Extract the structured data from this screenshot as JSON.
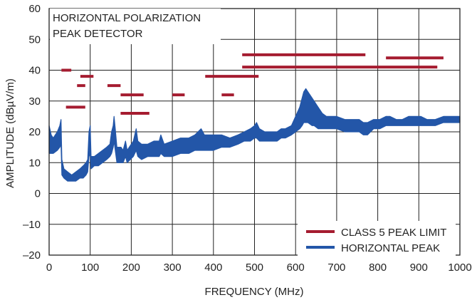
{
  "chart_data": {
    "type": "line",
    "annotation_lines": [
      "HORIZONTAL POLARIZATION",
      "PEAK DETECTOR"
    ],
    "xlabel": "FREQUENCY (MHz)",
    "ylabel": "AMPLITUDE (dBµV/m)",
    "xlim": [
      0,
      1000
    ],
    "ylim": [
      -20,
      60
    ],
    "x_ticks": [
      0,
      100,
      200,
      300,
      400,
      500,
      600,
      700,
      800,
      900,
      1000
    ],
    "y_ticks": [
      -20,
      -10,
      0,
      10,
      20,
      30,
      40,
      50,
      60
    ],
    "y_tick_labels": [
      "–20",
      "–10",
      "0",
      "10",
      "20",
      "30",
      "40",
      "50",
      "60"
    ],
    "grid": true,
    "legend_position": "bottom-right",
    "colors": {
      "limit": "#a51c30",
      "peak": "#2356a8",
      "grid": "#222222"
    },
    "limit_series": {
      "name": "CLASS 5 PEAK LIMIT",
      "segments": [
        {
          "x1": 30,
          "x2": 54,
          "y": 40
        },
        {
          "x1": 41,
          "x2": 88,
          "y": 28
        },
        {
          "x1": 68,
          "x2": 88,
          "y": 35
        },
        {
          "x1": 76,
          "x2": 108,
          "y": 38
        },
        {
          "x1": 142,
          "x2": 174,
          "y": 35
        },
        {
          "x1": 174,
          "x2": 230,
          "y": 32
        },
        {
          "x1": 174,
          "x2": 244,
          "y": 26
        },
        {
          "x1": 300,
          "x2": 330,
          "y": 32
        },
        {
          "x1": 380,
          "x2": 510,
          "y": 38
        },
        {
          "x1": 420,
          "x2": 450,
          "y": 32
        },
        {
          "x1": 470,
          "x2": 770,
          "y": 45
        },
        {
          "x1": 470,
          "x2": 945,
          "y": 41
        },
        {
          "x1": 820,
          "x2": 960,
          "y": 44
        }
      ]
    },
    "peak_series": {
      "name": "HORIZONTAL PEAK",
      "upper": [
        [
          0,
          22
        ],
        [
          5,
          19
        ],
        [
          10,
          18
        ],
        [
          20,
          20
        ],
        [
          26,
          22
        ],
        [
          29,
          24
        ],
        [
          31,
          11
        ],
        [
          36,
          8
        ],
        [
          45,
          7
        ],
        [
          55,
          6
        ],
        [
          65,
          7
        ],
        [
          75,
          8
        ],
        [
          83,
          9
        ],
        [
          90,
          10
        ],
        [
          94,
          11
        ],
        [
          97,
          20
        ],
        [
          100,
          22
        ],
        [
          102,
          12
        ],
        [
          110,
          12
        ],
        [
          120,
          13
        ],
        [
          130,
          14
        ],
        [
          140,
          15
        ],
        [
          148,
          16
        ],
        [
          152,
          20
        ],
        [
          156,
          22
        ],
        [
          158,
          25
        ],
        [
          161,
          21
        ],
        [
          165,
          15
        ],
        [
          175,
          15
        ],
        [
          180,
          14
        ],
        [
          186,
          17
        ],
        [
          190,
          14
        ],
        [
          205,
          17
        ],
        [
          212,
          21
        ],
        [
          216,
          17
        ],
        [
          225,
          16
        ],
        [
          240,
          16
        ],
        [
          255,
          17
        ],
        [
          268,
          17
        ],
        [
          272,
          19
        ],
        [
          280,
          16
        ],
        [
          300,
          17
        ],
        [
          320,
          18
        ],
        [
          340,
          18
        ],
        [
          355,
          19
        ],
        [
          370,
          21
        ],
        [
          378,
          19
        ],
        [
          400,
          19
        ],
        [
          420,
          19
        ],
        [
          440,
          18
        ],
        [
          460,
          19
        ],
        [
          475,
          20
        ],
        [
          490,
          21
        ],
        [
          500,
          22
        ],
        [
          505,
          23
        ],
        [
          512,
          21
        ],
        [
          525,
          20
        ],
        [
          540,
          20
        ],
        [
          555,
          20
        ],
        [
          565,
          21
        ],
        [
          575,
          21
        ],
        [
          590,
          22
        ],
        [
          600,
          25
        ],
        [
          610,
          28
        ],
        [
          616,
          31
        ],
        [
          620,
          33
        ],
        [
          625,
          34
        ],
        [
          630,
          33
        ],
        [
          640,
          31
        ],
        [
          645,
          30
        ],
        [
          655,
          28
        ],
        [
          665,
          26
        ],
        [
          675,
          25
        ],
        [
          685,
          25
        ],
        [
          700,
          25
        ],
        [
          720,
          24
        ],
        [
          740,
          24
        ],
        [
          755,
          24
        ],
        [
          765,
          23
        ],
        [
          775,
          23
        ],
        [
          790,
          24
        ],
        [
          805,
          24
        ],
        [
          820,
          25
        ],
        [
          830,
          25
        ],
        [
          845,
          24
        ],
        [
          860,
          24
        ],
        [
          875,
          25
        ],
        [
          890,
          25
        ],
        [
          905,
          25
        ],
        [
          920,
          24
        ],
        [
          940,
          24
        ],
        [
          960,
          25
        ],
        [
          980,
          25
        ],
        [
          1000,
          25
        ]
      ],
      "lower": [
        [
          0,
          13
        ],
        [
          5,
          13
        ],
        [
          10,
          13
        ],
        [
          20,
          14
        ],
        [
          26,
          15
        ],
        [
          29,
          16
        ],
        [
          31,
          6
        ],
        [
          36,
          5
        ],
        [
          45,
          4
        ],
        [
          55,
          4
        ],
        [
          65,
          4
        ],
        [
          75,
          5
        ],
        [
          83,
          5
        ],
        [
          90,
          6
        ],
        [
          94,
          7
        ],
        [
          97,
          12
        ],
        [
          100,
          13
        ],
        [
          102,
          8
        ],
        [
          110,
          9
        ],
        [
          120,
          9
        ],
        [
          130,
          10
        ],
        [
          140,
          11
        ],
        [
          148,
          12
        ],
        [
          152,
          13
        ],
        [
          156,
          15
        ],
        [
          158,
          17
        ],
        [
          161,
          14
        ],
        [
          165,
          10
        ],
        [
          175,
          10
        ],
        [
          180,
          10
        ],
        [
          186,
          12
        ],
        [
          190,
          10
        ],
        [
          205,
          12
        ],
        [
          212,
          14
        ],
        [
          216,
          12
        ],
        [
          225,
          11
        ],
        [
          240,
          12
        ],
        [
          255,
          12
        ],
        [
          268,
          12
        ],
        [
          272,
          13
        ],
        [
          280,
          12
        ],
        [
          300,
          12
        ],
        [
          320,
          13
        ],
        [
          340,
          13
        ],
        [
          355,
          14
        ],
        [
          370,
          14
        ],
        [
          378,
          14
        ],
        [
          400,
          14
        ],
        [
          420,
          15
        ],
        [
          440,
          15
        ],
        [
          460,
          16
        ],
        [
          475,
          17
        ],
        [
          490,
          17
        ],
        [
          500,
          18
        ],
        [
          505,
          18
        ],
        [
          512,
          17
        ],
        [
          525,
          17
        ],
        [
          540,
          17
        ],
        [
          555,
          17
        ],
        [
          565,
          18
        ],
        [
          575,
          18
        ],
        [
          590,
          19
        ],
        [
          600,
          20
        ],
        [
          610,
          21
        ],
        [
          616,
          22
        ],
        [
          620,
          23
        ],
        [
          625,
          23
        ],
        [
          630,
          23
        ],
        [
          640,
          22
        ],
        [
          645,
          22
        ],
        [
          655,
          21
        ],
        [
          665,
          21
        ],
        [
          675,
          21
        ],
        [
          685,
          21
        ],
        [
          700,
          21
        ],
        [
          720,
          20
        ],
        [
          740,
          20
        ],
        [
          755,
          20
        ],
        [
          765,
          19
        ],
        [
          775,
          19
        ],
        [
          790,
          21
        ],
        [
          805,
          21
        ],
        [
          820,
          22
        ],
        [
          830,
          22
        ],
        [
          845,
          22
        ],
        [
          860,
          22
        ],
        [
          875,
          22
        ],
        [
          890,
          22
        ],
        [
          905,
          22
        ],
        [
          920,
          22
        ],
        [
          940,
          22
        ],
        [
          960,
          23
        ],
        [
          980,
          23
        ],
        [
          1000,
          23
        ]
      ]
    }
  }
}
